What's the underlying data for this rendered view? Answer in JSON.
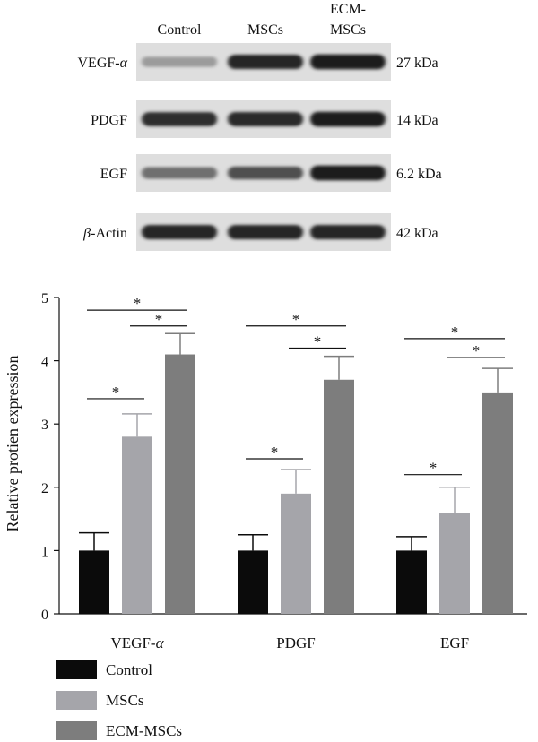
{
  "blot": {
    "lanes": [
      "Control",
      "MSCs",
      "ECM-MSCs"
    ],
    "rows": [
      {
        "protein": "VEGF-α",
        "prefix": "VEGF-",
        "italic": "α",
        "mw": "27 kDa",
        "band_intensity": [
          0.35,
          0.9,
          0.95
        ]
      },
      {
        "protein": "PDGF",
        "prefix": "PDGF",
        "italic": "",
        "mw": "14 kDa",
        "band_intensity": [
          0.85,
          0.88,
          0.95
        ]
      },
      {
        "protein": "EGF",
        "prefix": "EGF",
        "italic": "",
        "mw": "6.2 kDa",
        "band_intensity": [
          0.55,
          0.7,
          0.95
        ]
      },
      {
        "protein": "β-Actin",
        "prefix": "-Actin",
        "italic": "β",
        "italic_first": true,
        "mw": "42 kDa",
        "band_intensity": [
          0.9,
          0.9,
          0.9
        ]
      }
    ]
  },
  "chart_data": {
    "type": "bar",
    "categories": [
      "VEGF-α",
      "PDGF",
      "EGF"
    ],
    "ylabel": "Relative protien expression",
    "ylim": [
      0,
      5
    ],
    "yticks": [
      0,
      1,
      2,
      3,
      4,
      5
    ],
    "series": [
      {
        "name": "Control",
        "color": "#0b0b0b",
        "values": [
          1.0,
          1.0,
          1.0
        ],
        "errors": [
          0.28,
          0.25,
          0.22
        ]
      },
      {
        "name": "MSCs",
        "color": "#a5a5aa",
        "values": [
          2.8,
          1.9,
          1.6
        ],
        "errors": [
          0.36,
          0.38,
          0.4
        ]
      },
      {
        "name": "ECM-MSCs",
        "color": "#7d7d7d",
        "values": [
          4.1,
          3.7,
          3.5
        ],
        "errors": [
          0.33,
          0.37,
          0.38
        ]
      }
    ],
    "significance": [
      {
        "category": 0,
        "from": 0,
        "to": 1,
        "y": 3.4,
        "label": "*"
      },
      {
        "category": 0,
        "from": 0,
        "to": 2,
        "y": 4.8,
        "label": "*"
      },
      {
        "category": 0,
        "from": 1,
        "to": 2,
        "y": 4.55,
        "label": "*"
      },
      {
        "category": 1,
        "from": 0,
        "to": 1,
        "y": 2.45,
        "label": "*"
      },
      {
        "category": 1,
        "from": 0,
        "to": 2,
        "y": 4.55,
        "label": "*"
      },
      {
        "category": 1,
        "from": 1,
        "to": 2,
        "y": 4.2,
        "label": "*"
      },
      {
        "category": 2,
        "from": 0,
        "to": 1,
        "y": 2.2,
        "label": "*"
      },
      {
        "category": 2,
        "from": 0,
        "to": 2,
        "y": 4.35,
        "label": "*"
      },
      {
        "category": 2,
        "from": 1,
        "to": 2,
        "y": 4.05,
        "label": "*"
      }
    ],
    "legend_position": "bottom-left",
    "grid": false
  }
}
